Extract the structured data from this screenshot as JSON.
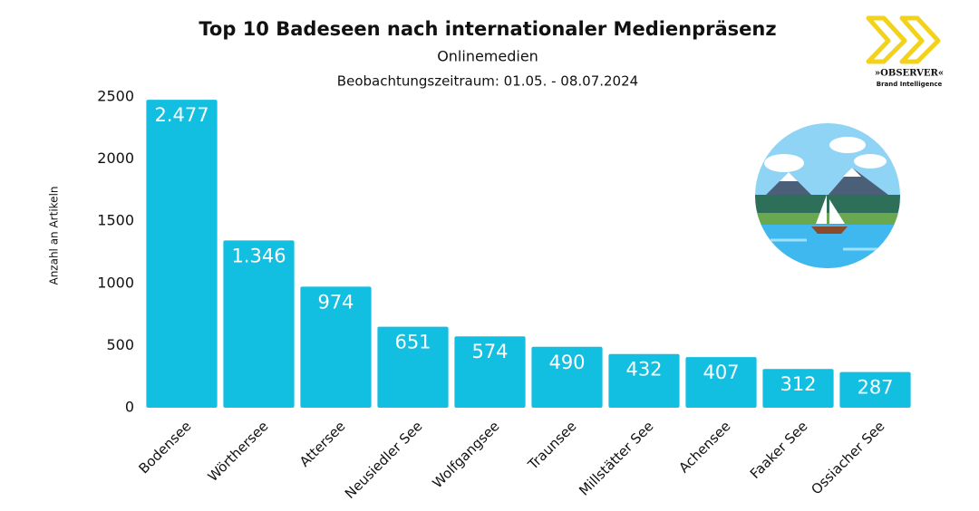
{
  "chart_data": {
    "type": "bar",
    "title": "Top 10 Badeseen nach internationaler Medienpräsenz",
    "subtitle": "Onlinemedien",
    "subtitle2": "Beobachtungszeitraum: 01.05. - 08.07.2024",
    "y_label": "Anzahl an Artikeln",
    "categories": [
      "Bodensee",
      "Wörthersee",
      "Attersee",
      "Neusiedler See",
      "Wolfgangsee",
      "Traunsee",
      "Millstätter See",
      "Achensee",
      "Faaker See",
      "Ossiacher See"
    ],
    "values": [
      2477,
      1346,
      974,
      651,
      574,
      490,
      432,
      407,
      312,
      287
    ],
    "value_labels": [
      "2.477",
      "1.346",
      "974",
      "651",
      "574",
      "490",
      "432",
      "407",
      "312",
      "287"
    ],
    "color": "#12bfe0",
    "ylim": [
      0,
      2500
    ],
    "yticks": [
      0,
      500,
      1000,
      1500,
      2000,
      2500
    ],
    "grid": false
  },
  "logo": {
    "name": "»OBSERVER«",
    "tagline": "Brand Intelligence"
  }
}
